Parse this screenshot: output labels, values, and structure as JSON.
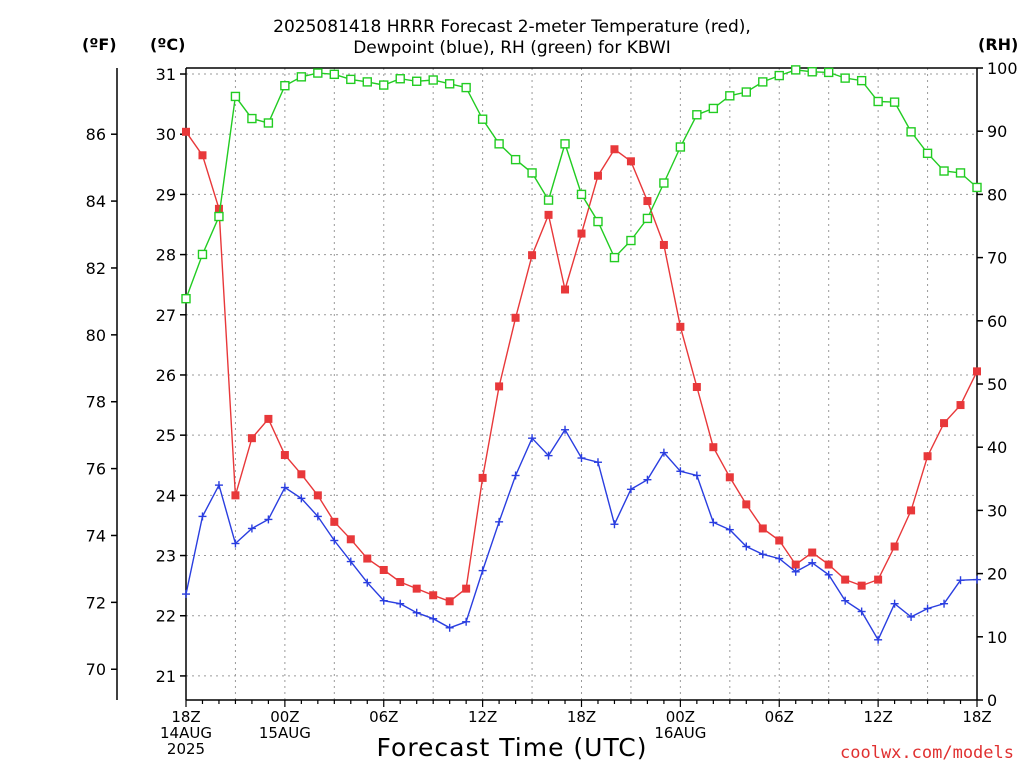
{
  "title_line1": "2025081418 HRRR Forecast 2-meter Temperature (red),",
  "title_line2": "Dewpoint (blue), RH (green) for KBWI",
  "unit_f": "(ºF)",
  "unit_c": "(ºC)",
  "unit_rh": "(RH)",
  "x_axis_title": "Forecast Time (UTC)",
  "credit": "coolwx.com/models",
  "colors": {
    "temp": "#e8383a",
    "dewpoint": "#2a3ee0",
    "rh": "#22cc22",
    "grid": "#9a9a9a"
  },
  "chart_data": {
    "type": "line",
    "title": "2025081418 HRRR Forecast 2-meter Temperature (red), Dewpoint (blue), RH (green) for KBWI",
    "x": {
      "start": "2025-08-14 18Z",
      "step_hours": 1,
      "count": 49,
      "tick_labels": [
        {
          "hour": 0,
          "lines": [
            "18Z",
            "14AUG",
            "2025"
          ]
        },
        {
          "hour": 6,
          "lines": [
            "00Z",
            "15AUG"
          ]
        },
        {
          "hour": 12,
          "lines": [
            "06Z"
          ]
        },
        {
          "hour": 18,
          "lines": [
            "12Z"
          ]
        },
        {
          "hour": 24,
          "lines": [
            "18Z"
          ]
        },
        {
          "hour": 30,
          "lines": [
            "00Z",
            "16AUG"
          ]
        },
        {
          "hour": 36,
          "lines": [
            "06Z"
          ]
        },
        {
          "hour": 42,
          "lines": [
            "12Z"
          ]
        },
        {
          "hour": 48,
          "lines": [
            "18Z"
          ]
        }
      ],
      "xlabel": "Forecast Time (UTC)"
    },
    "y_celsius": {
      "range": [
        20.6,
        31.1
      ],
      "ticks": [
        "21",
        "22",
        "23",
        "24",
        "25",
        "26",
        "27",
        "28",
        "29",
        "30",
        "31"
      ]
    },
    "y_fahrenheit": {
      "range": [
        69.08,
        87.98
      ],
      "ticks": [
        "70",
        "72",
        "74",
        "76",
        "78",
        "80",
        "82",
        "84",
        "86"
      ]
    },
    "y_rh": {
      "range": [
        0,
        100
      ],
      "ticks": [
        "0",
        "10",
        "20",
        "30",
        "40",
        "50",
        "60",
        "70",
        "80",
        "90",
        "100"
      ]
    },
    "grid": true,
    "series": [
      {
        "name": "Temperature (°C)",
        "color": "#e8383a",
        "marker": "filled-square",
        "axis": "celsius",
        "values": [
          30.04,
          29.65,
          28.76,
          24.0,
          24.95,
          25.27,
          24.67,
          24.35,
          24.0,
          23.56,
          23.27,
          22.95,
          22.76,
          22.56,
          22.45,
          22.34,
          22.24,
          22.45,
          24.29,
          25.81,
          26.95,
          27.99,
          28.66,
          27.42,
          28.35,
          29.31,
          29.75,
          29.55,
          28.89,
          28.16,
          26.8,
          25.8,
          24.8,
          24.3,
          23.85,
          23.45,
          23.25,
          22.85,
          23.05,
          22.85,
          22.6,
          22.5,
          22.6,
          23.15,
          23.75,
          24.65,
          25.2,
          25.5,
          26.06
        ]
      },
      {
        "name": "Dewpoint (°C)",
        "color": "#2a3ee0",
        "marker": "plus",
        "axis": "celsius",
        "values": [
          22.36,
          23.65,
          24.17,
          23.2,
          23.45,
          23.6,
          24.13,
          23.95,
          23.65,
          23.25,
          22.9,
          22.55,
          22.25,
          22.2,
          22.05,
          21.95,
          21.8,
          21.9,
          22.75,
          23.56,
          24.33,
          24.95,
          24.66,
          25.09,
          24.62,
          24.55,
          23.52,
          24.1,
          24.26,
          24.71,
          24.4,
          24.33,
          23.55,
          23.43,
          23.15,
          23.02,
          22.95,
          22.73,
          22.88,
          22.68,
          22.25,
          22.07,
          21.6,
          22.2,
          21.98,
          22.12,
          22.2,
          22.59,
          22.6
        ]
      },
      {
        "name": "RH (%)",
        "color": "#22cc22",
        "marker": "open-square",
        "axis": "rh",
        "values": [
          63.5,
          70.5,
          76.5,
          95.5,
          92.0,
          91.3,
          97.2,
          98.6,
          99.2,
          99.0,
          98.2,
          97.8,
          97.3,
          98.3,
          97.9,
          98.1,
          97.5,
          96.9,
          91.9,
          88.0,
          85.5,
          83.4,
          79.1,
          88.0,
          80.0,
          75.7,
          70.0,
          72.7,
          76.2,
          81.8,
          87.5,
          92.6,
          93.6,
          95.6,
          96.2,
          97.8,
          98.8,
          99.7,
          99.4,
          99.3,
          98.4,
          98.0,
          94.7,
          94.6,
          89.9,
          86.5,
          83.7,
          83.4,
          81.1
        ]
      }
    ]
  }
}
